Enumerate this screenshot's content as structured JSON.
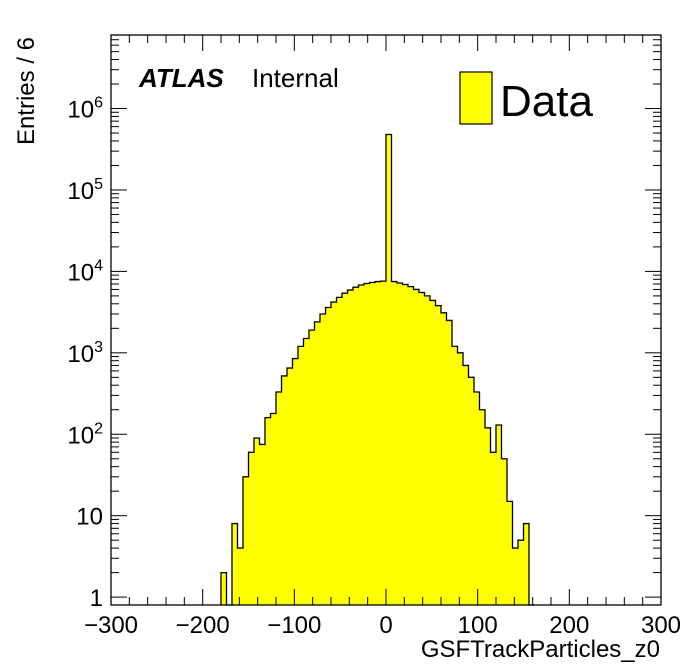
{
  "chart_data": {
    "type": "bar",
    "histogram": true,
    "xlabel": "GSFTrackParticles_z0",
    "ylabel": "Entries / 6",
    "xlim": [
      -300,
      300
    ],
    "ylim": [
      0.8,
      8000000
    ],
    "y_scale": "log",
    "grid": false,
    "legend_position": "top-right",
    "fill_color": "#ffff00",
    "line_color": "#000000",
    "x_ticks": [
      {
        "value": -300,
        "label": "−300"
      },
      {
        "value": -200,
        "label": "−200"
      },
      {
        "value": -100,
        "label": "−100"
      },
      {
        "value": 0,
        "label": "0"
      },
      {
        "value": 100,
        "label": "100"
      },
      {
        "value": 200,
        "label": "200"
      },
      {
        "value": 300,
        "label": "300"
      }
    ],
    "y_ticks": [
      {
        "value": 1,
        "base": "1",
        "exp": ""
      },
      {
        "value": 10,
        "base": "10",
        "exp": ""
      },
      {
        "value": 100,
        "base": "10",
        "exp": "2"
      },
      {
        "value": 1000,
        "base": "10",
        "exp": "3"
      },
      {
        "value": 10000,
        "base": "10",
        "exp": "4"
      },
      {
        "value": 100000,
        "base": "10",
        "exp": "5"
      },
      {
        "value": 1000000,
        "base": "10",
        "exp": "6"
      }
    ],
    "series": [
      {
        "name": "Data",
        "bin_width": 6,
        "bins": [
          {
            "x0": -180,
            "value": 2
          },
          {
            "x0": -174,
            "value": 0
          },
          {
            "x0": -168,
            "value": 8
          },
          {
            "x0": -162,
            "value": 4
          },
          {
            "x0": -156,
            "value": 30
          },
          {
            "x0": -150,
            "value": 60
          },
          {
            "x0": -144,
            "value": 90
          },
          {
            "x0": -138,
            "value": 75
          },
          {
            "x0": -132,
            "value": 160
          },
          {
            "x0": -126,
            "value": 180
          },
          {
            "x0": -120,
            "value": 330
          },
          {
            "x0": -114,
            "value": 520
          },
          {
            "x0": -108,
            "value": 650
          },
          {
            "x0": -102,
            "value": 850
          },
          {
            "x0": -96,
            "value": 1200
          },
          {
            "x0": -90,
            "value": 1500
          },
          {
            "x0": -84,
            "value": 1900
          },
          {
            "x0": -78,
            "value": 2400
          },
          {
            "x0": -72,
            "value": 3000
          },
          {
            "x0": -66,
            "value": 3600
          },
          {
            "x0": -60,
            "value": 4200
          },
          {
            "x0": -54,
            "value": 4800
          },
          {
            "x0": -48,
            "value": 5400
          },
          {
            "x0": -42,
            "value": 5900
          },
          {
            "x0": -36,
            "value": 6400
          },
          {
            "x0": -30,
            "value": 6800
          },
          {
            "x0": -24,
            "value": 7100
          },
          {
            "x0": -18,
            "value": 7300
          },
          {
            "x0": -12,
            "value": 7500
          },
          {
            "x0": -6,
            "value": 7600
          },
          {
            "x0": 0,
            "value": 480000
          },
          {
            "x0": 6,
            "value": 7500
          },
          {
            "x0": 12,
            "value": 7200
          },
          {
            "x0": 18,
            "value": 6900
          },
          {
            "x0": 24,
            "value": 6500
          },
          {
            "x0": 30,
            "value": 6000
          },
          {
            "x0": 36,
            "value": 5500
          },
          {
            "x0": 42,
            "value": 5000
          },
          {
            "x0": 48,
            "value": 4400
          },
          {
            "x0": 54,
            "value": 3800
          },
          {
            "x0": 60,
            "value": 3100
          },
          {
            "x0": 66,
            "value": 2500
          },
          {
            "x0": 72,
            "value": 1200
          },
          {
            "x0": 78,
            "value": 1000
          },
          {
            "x0": 84,
            "value": 700
          },
          {
            "x0": 90,
            "value": 500
          },
          {
            "x0": 96,
            "value": 330
          },
          {
            "x0": 102,
            "value": 200
          },
          {
            "x0": 108,
            "value": 120
          },
          {
            "x0": 114,
            "value": 60
          },
          {
            "x0": 120,
            "value": 130
          },
          {
            "x0": 126,
            "value": 50
          },
          {
            "x0": 132,
            "value": 15
          },
          {
            "x0": 138,
            "value": 4
          },
          {
            "x0": 144,
            "value": 5
          },
          {
            "x0": 150,
            "value": 8
          },
          {
            "x0": 156,
            "value": 0
          }
        ]
      }
    ],
    "legend": [
      {
        "label": "Data",
        "color": "#ffff00"
      }
    ],
    "annotation": {
      "brand": "ATLAS",
      "status": "Internal"
    }
  }
}
